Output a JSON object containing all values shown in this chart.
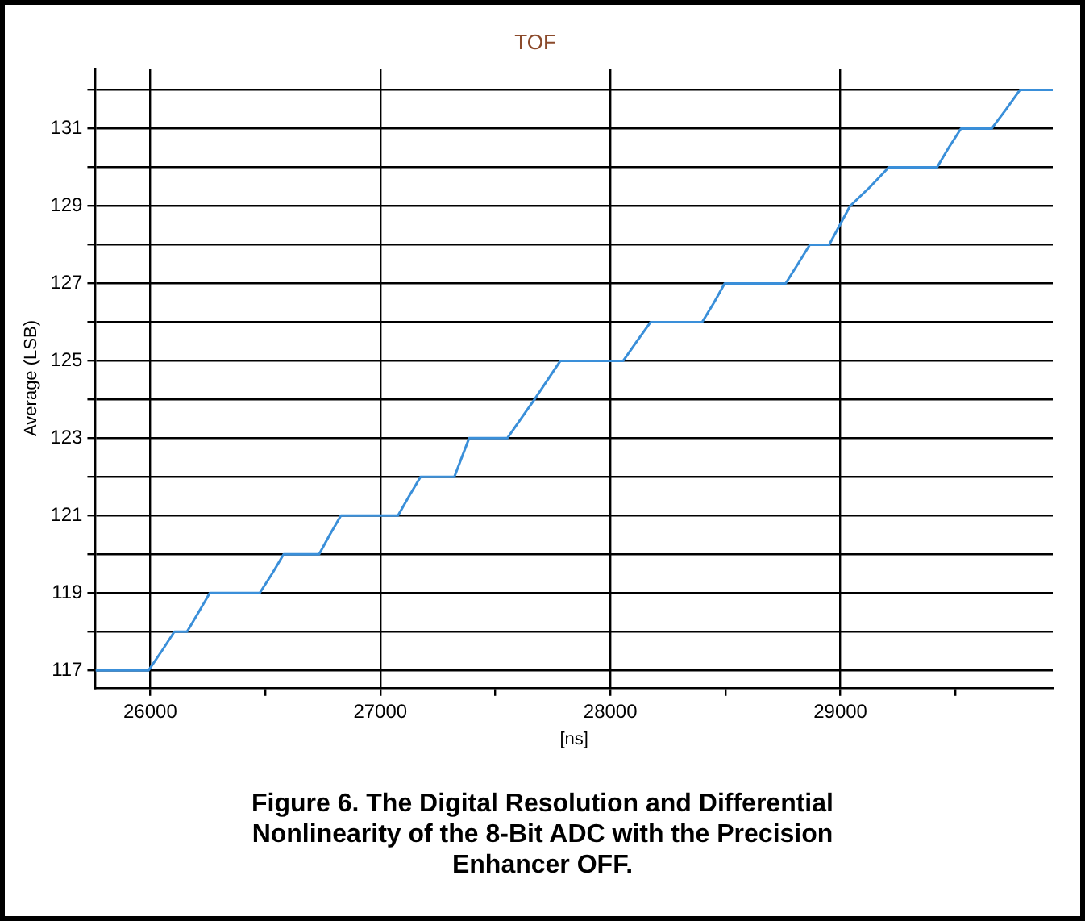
{
  "chart_data": {
    "type": "step",
    "title": "TOF",
    "xlabel": "[ns]",
    "ylabel": "Average (LSB)",
    "annotations": [
      "Figure 6.  The Digital Resolution and Differential Nonlinearity of the 8-Bit ADC with the Precision Enhancer OFF."
    ],
    "series": [
      {
        "color": "#3a8fd9",
        "x": [
          25762,
          25993,
          26050,
          26105,
          26160,
          26210,
          26259,
          26476,
          26530,
          26580,
          26734,
          26780,
          26829,
          27077,
          27125,
          27175,
          27322,
          27386,
          27552,
          27670,
          27783,
          28056,
          28115,
          28175,
          28399,
          28450,
          28497,
          28762,
          28815,
          28867,
          28951,
          29042,
          29130,
          29210,
          29420,
          29470,
          29524,
          29657,
          29720,
          29780,
          29923
        ],
        "values": [
          117,
          117,
          117.5,
          118,
          118,
          118.5,
          119,
          119,
          119.5,
          120,
          120,
          120.5,
          121,
          121,
          121.5,
          122,
          122,
          123,
          123,
          124,
          125,
          125,
          125.5,
          126,
          126,
          126.5,
          127,
          127,
          127.5,
          128,
          128,
          129,
          129.5,
          130,
          130,
          130.5,
          131,
          131,
          131.5,
          132,
          132
        ]
      }
    ],
    "xlim": [
      25762,
      29923
    ],
    "xticks": [
      26000,
      {
        "value": 26500,
        "label": null
      },
      27000,
      {
        "value": 27500,
        "label": null
      },
      28000,
      {
        "value": 28500,
        "label": null
      },
      29000,
      {
        "value": 29500,
        "label": null
      }
    ],
    "ylim": [
      116.55,
      132.55
    ],
    "yticks": [
      117,
      {
        "value": 118,
        "label": null
      },
      119,
      {
        "value": 120,
        "label": null
      },
      121,
      {
        "value": 122,
        "label": null
      },
      123,
      {
        "value": 124,
        "label": null
      },
      125,
      {
        "value": 126,
        "label": null
      },
      127,
      {
        "value": 128,
        "label": null
      },
      129,
      {
        "value": 130,
        "label": null
      },
      131,
      {
        "value": 132,
        "label": null
      }
    ],
    "grid": true,
    "legend": false,
    "marker": "none",
    "line_style": "solid"
  }
}
